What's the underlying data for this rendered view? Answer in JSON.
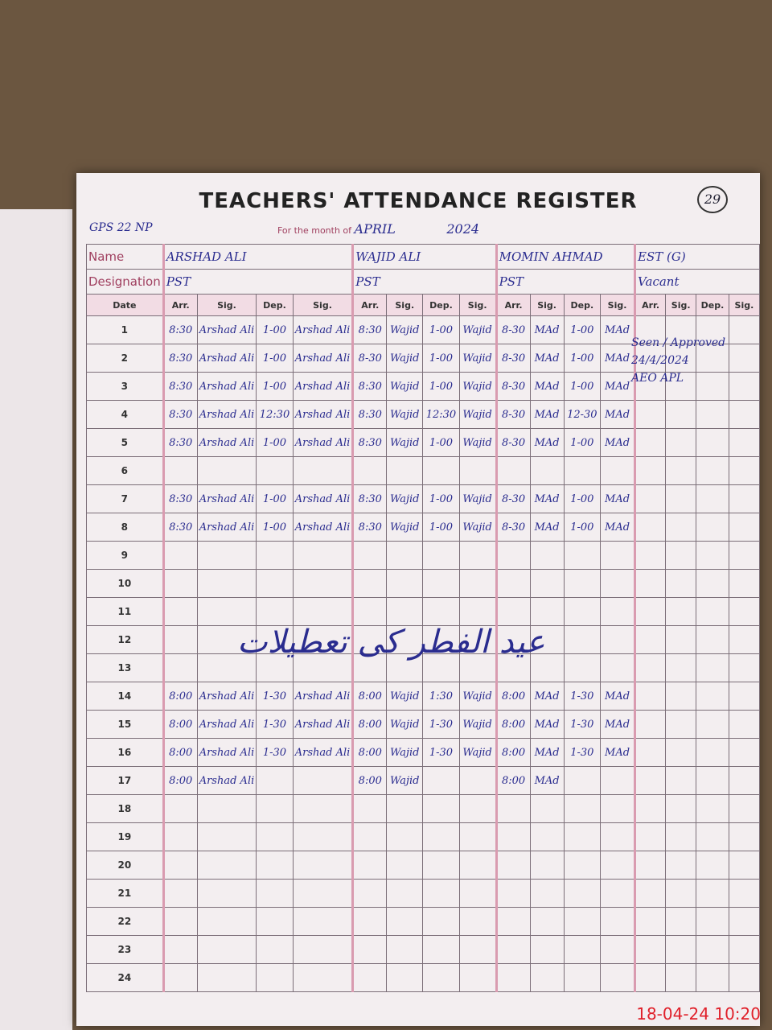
{
  "header": {
    "title": "TEACHERS' ATTENDANCE REGISTER",
    "page_number": "29",
    "school": "GPS 22 NP",
    "month_label": "For the month of",
    "month": "APRIL",
    "year": "2024",
    "name_label": "Name",
    "designation_label": "Designation",
    "date_label": "Date"
  },
  "teachers": [
    {
      "name": "ARSHAD ALI",
      "designation": "PST"
    },
    {
      "name": "WAJID ALI",
      "designation": "PST"
    },
    {
      "name": "MOMIN AHMAD",
      "designation": "PST"
    },
    {
      "name": "EST (G)",
      "designation": "Vacant"
    }
  ],
  "column_headers": [
    "Arr.",
    "Sig.",
    "Dep.",
    "Sig."
  ],
  "rows": [
    {
      "date": "1",
      "cells": [
        "8:30",
        "Arshad Ali",
        "1-00",
        "Arshad Ali",
        "8:30",
        "Wajid",
        "1-00",
        "Wajid",
        "8-30",
        "MAd",
        "1-00",
        "MAd",
        null,
        null,
        null,
        null
      ]
    },
    {
      "date": "2",
      "cells": [
        "8:30",
        "Arshad Ali",
        "1-00",
        "Arshad Ali",
        "8-30",
        "Wajid",
        "1-00",
        "Wajid",
        "8-30",
        "MAd",
        "1-00",
        "MAd",
        null,
        null,
        null,
        null
      ]
    },
    {
      "date": "3",
      "cells": [
        "8:30",
        "Arshad Ali",
        "1-00",
        "Arshad Ali",
        "8:30",
        "Wajid",
        "1-00",
        "Wajid",
        "8-30",
        "MAd",
        "1-00",
        "MAd",
        null,
        null,
        null,
        null
      ]
    },
    {
      "date": "4",
      "cells": [
        "8:30",
        "Arshad Ali",
        "12:30",
        "Arshad Ali",
        "8:30",
        "Wajid",
        "12:30",
        "Wajid",
        "8-30",
        "MAd",
        "12-30",
        "MAd",
        null,
        null,
        null,
        null
      ]
    },
    {
      "date": "5",
      "cells": [
        "8:30",
        "Arshad Ali",
        "1-00",
        "Arshad Ali",
        "8:30",
        "Wajid",
        "1-00",
        "Wajid",
        "8-30",
        "MAd",
        "1-00",
        "MAd",
        null,
        null,
        null,
        null
      ]
    },
    {
      "date": "6"
    },
    {
      "date": "7",
      "cells": [
        "8:30",
        "Arshad Ali",
        "1-00",
        "Arshad Ali",
        "8:30",
        "Wajid",
        "1-00",
        "Wajid",
        "8-30",
        "MAd",
        "1-00",
        "MAd",
        null,
        null,
        null,
        null
      ]
    },
    {
      "date": "8",
      "cells": [
        "8:30",
        "Arshad Ali",
        "1-00",
        "Arshad Ali",
        "8:30",
        "Wajid",
        "1-00",
        "Wajid",
        "8-30",
        "MAd",
        "1-00",
        "MAd",
        null,
        null,
        null,
        null
      ]
    },
    {
      "date": "9"
    },
    {
      "date": "10"
    },
    {
      "date": "11"
    },
    {
      "date": "12"
    },
    {
      "date": "13"
    },
    {
      "date": "14",
      "cells": [
        "8:00",
        "Arshad Ali",
        "1-30",
        "Arshad Ali",
        "8:00",
        "Wajid",
        "1:30",
        "Wajid",
        "8:00",
        "MAd",
        "1-30",
        "MAd",
        null,
        null,
        null,
        null
      ]
    },
    {
      "date": "15",
      "cells": [
        "8:00",
        "Arshad Ali",
        "1-30",
        "Arshad Ali",
        "8:00",
        "Wajid",
        "1-30",
        "Wajid",
        "8:00",
        "MAd",
        "1-30",
        "MAd",
        null,
        null,
        null,
        null
      ]
    },
    {
      "date": "16",
      "cells": [
        "8:00",
        "Arshad Ali",
        "1-30",
        "Arshad Ali",
        "8:00",
        "Wajid",
        "1-30",
        "Wajid",
        "8:00",
        "MAd",
        "1-30",
        "MAd",
        null,
        null,
        null,
        null
      ]
    },
    {
      "date": "17",
      "cells": [
        "8:00",
        "Arshad Ali",
        null,
        null,
        "8:00",
        "Wajid",
        null,
        null,
        "8:00",
        "MAd",
        null,
        null,
        null,
        null,
        null,
        null
      ]
    },
    {
      "date": "18"
    },
    {
      "date": "19"
    },
    {
      "date": "20"
    },
    {
      "date": "21"
    },
    {
      "date": "22"
    },
    {
      "date": "23"
    },
    {
      "date": "24"
    }
  ],
  "holiday_note": "عید الفطر کی تعطیلات",
  "approval": {
    "text": "Seen / Approved",
    "date": "24/4/2024",
    "officer": "AEO APL"
  },
  "timestamp": "18-04-24 10:20"
}
